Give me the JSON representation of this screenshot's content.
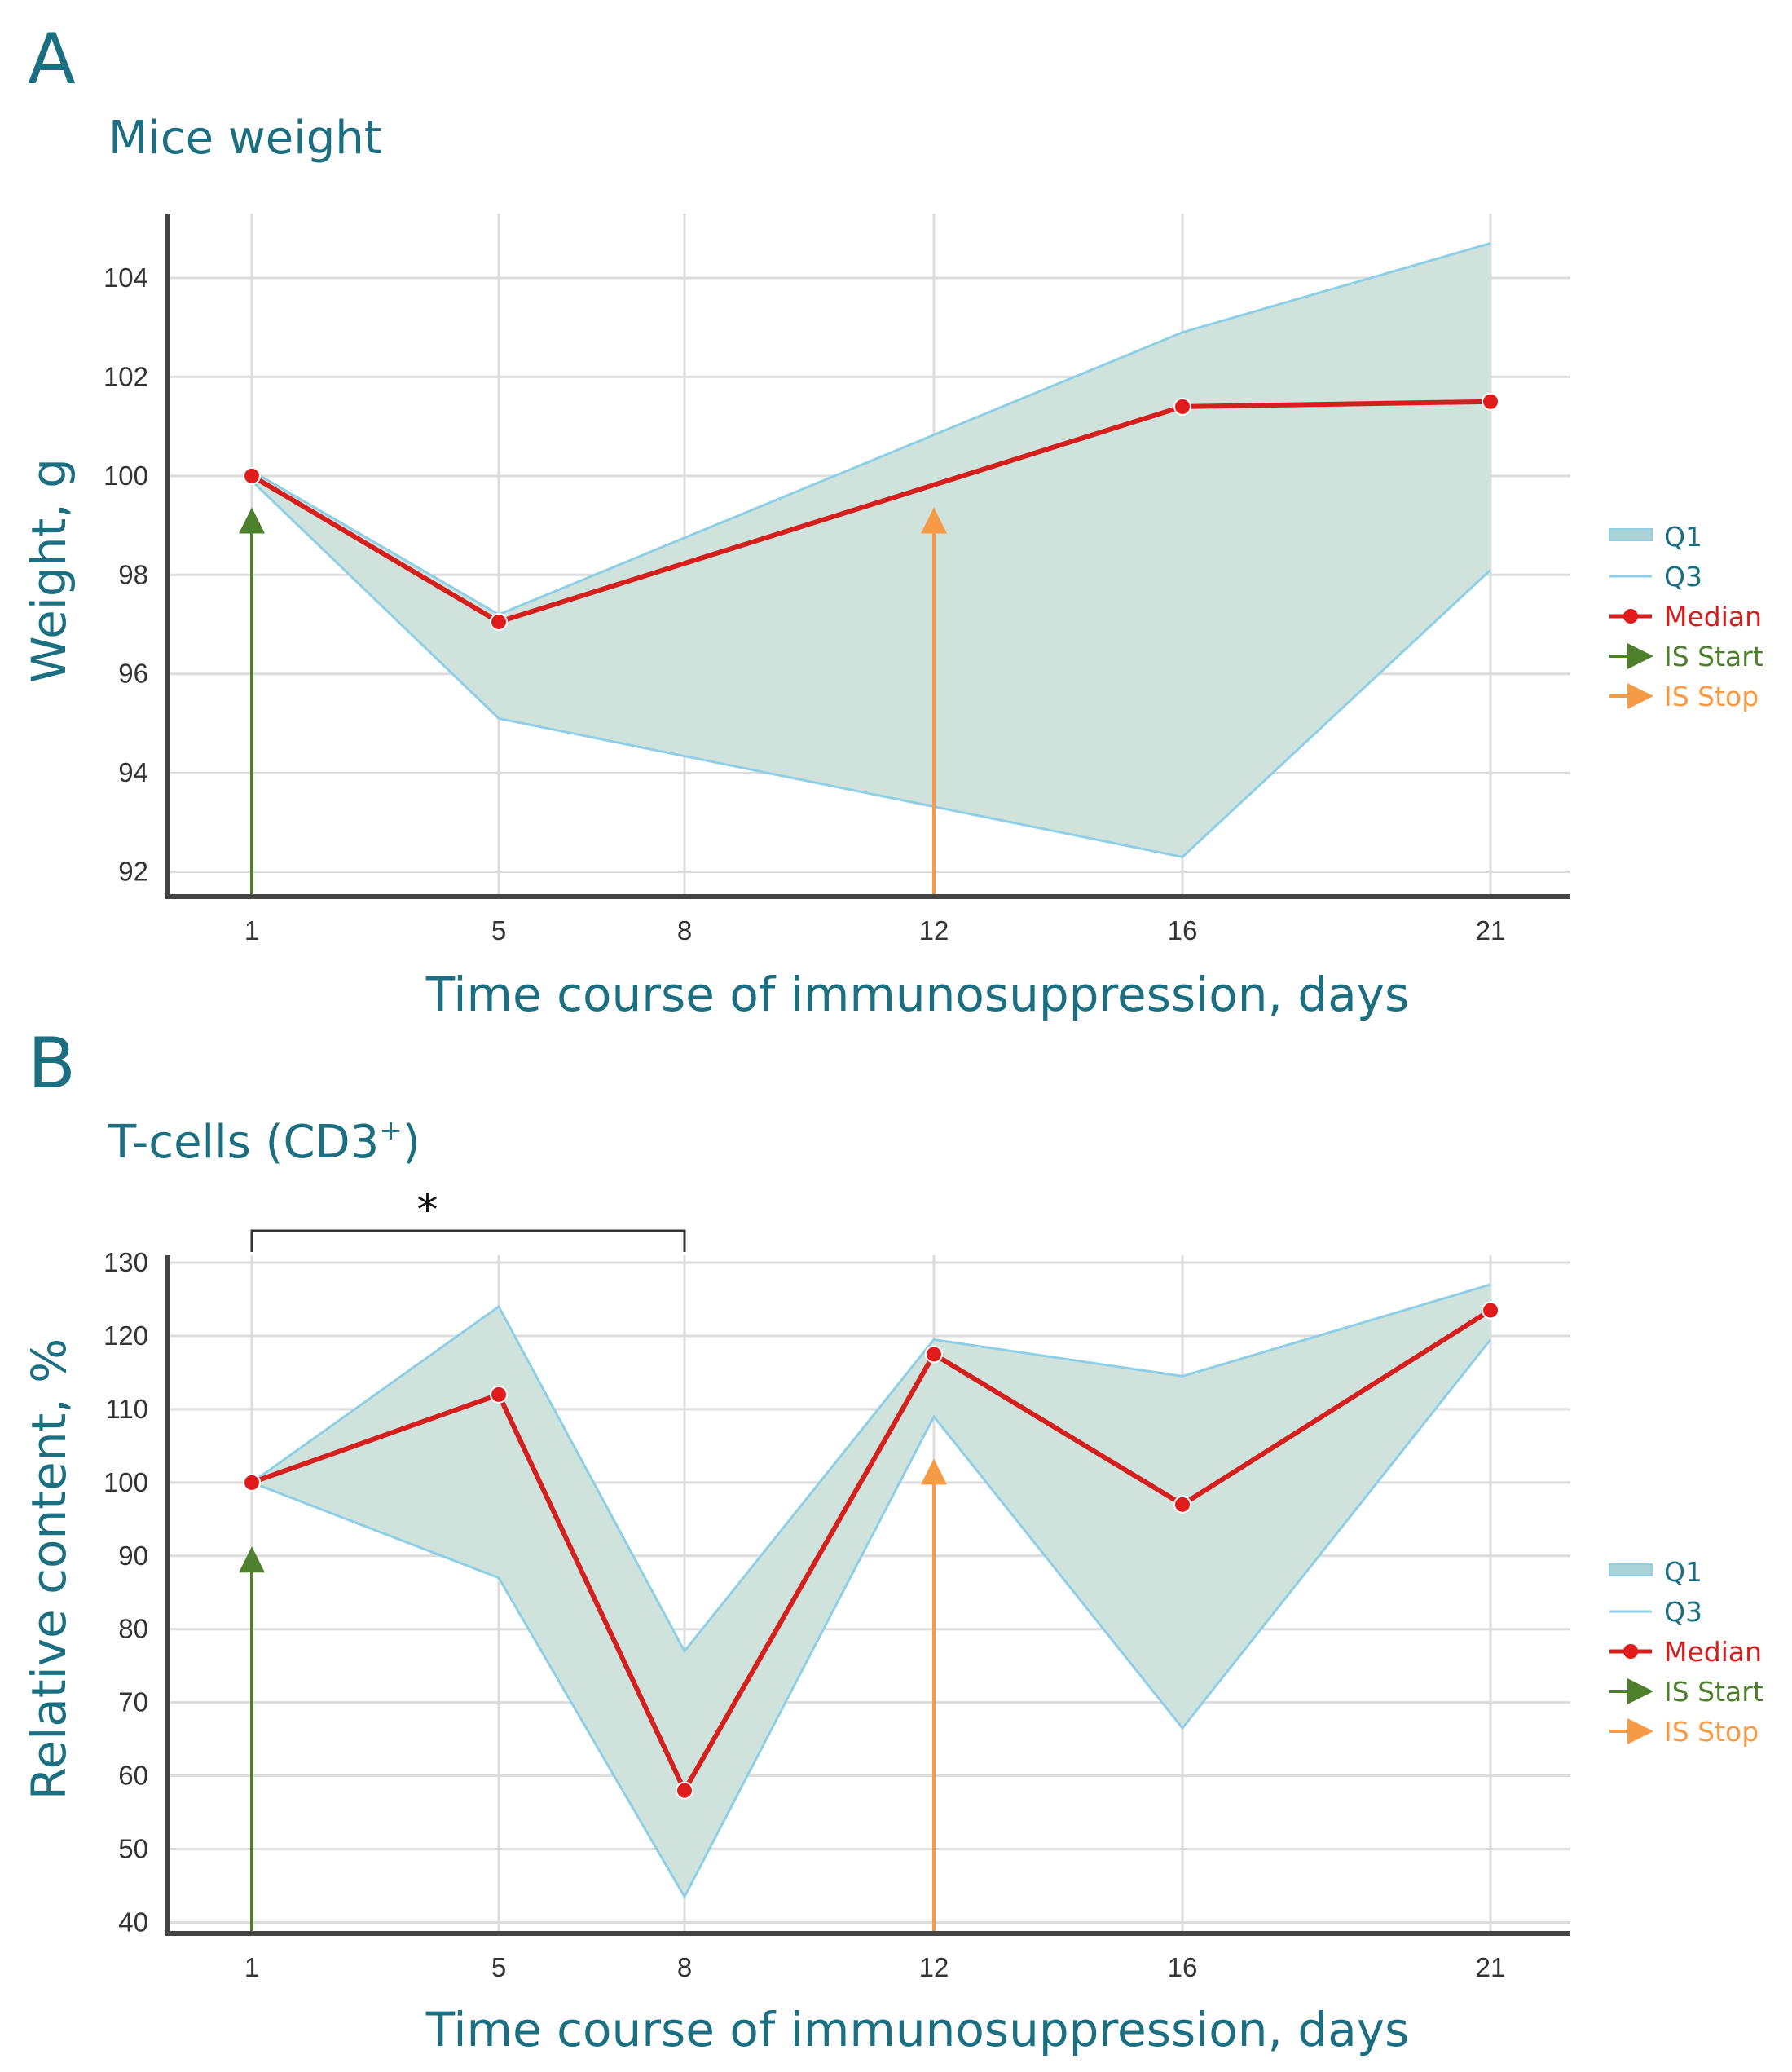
{
  "colors": {
    "band_fill": "#cfe2dc",
    "band_stroke": "#8fcfe6",
    "median": "#d51f1f",
    "median_marker": "#e01b1b",
    "is_start": "#4e7f2c",
    "is_stop": "#f79a45",
    "title_text": "#1b6f80"
  },
  "chart_data": [
    {
      "type": "area",
      "panel_letter": "A",
      "title": "Mice weight",
      "xlabel": "Time course of immunosuppression, days",
      "ylabel": "Weight, g",
      "categories": [
        "1",
        "5",
        "8",
        "12",
        "16",
        "21"
      ],
      "x": [
        1,
        5,
        8,
        12,
        16,
        21
      ],
      "y_ticks": [
        92,
        94,
        96,
        98,
        100,
        102,
        104
      ],
      "ylim": [
        91.5,
        105.3
      ],
      "series": [
        {
          "name": "Q1",
          "kind": "band-lower",
          "x": [
            1,
            5,
            16,
            21
          ],
          "values": [
            99.9,
            95.1,
            92.3,
            98.1
          ]
        },
        {
          "name": "Q3",
          "kind": "band-upper",
          "x": [
            1,
            5,
            16,
            21
          ],
          "values": [
            100.1,
            97.2,
            102.9,
            104.7
          ]
        },
        {
          "name": "Median",
          "kind": "line",
          "x": [
            1,
            5,
            16,
            21
          ],
          "values": [
            100.0,
            97.05,
            101.4,
            101.5
          ]
        }
      ],
      "arrows": [
        {
          "name": "IS Start",
          "x": 1,
          "to": 99.1
        },
        {
          "name": "IS Stop",
          "x": 12,
          "to": 99.1
        }
      ],
      "legend": [
        "Q1",
        "Q3",
        "Median",
        "IS Start",
        "IS Stop"
      ],
      "legend_position": "right",
      "grid": true
    },
    {
      "type": "area",
      "panel_letter": "B",
      "title": "T-cells (CD3",
      "title_sup": "+",
      "title_end": ")",
      "xlabel": "Time course of immunosuppression, days",
      "ylabel": "Relative content, %",
      "categories": [
        "1",
        "5",
        "8",
        "12",
        "16",
        "21"
      ],
      "x": [
        1,
        5,
        8,
        12,
        16,
        21
      ],
      "y_ticks": [
        40,
        50,
        60,
        70,
        80,
        90,
        100,
        110,
        120,
        130
      ],
      "ylim": [
        38.5,
        131
      ],
      "series": [
        {
          "name": "Q1",
          "kind": "band-lower",
          "x": [
            1,
            5,
            8,
            12,
            16,
            21
          ],
          "values": [
            100,
            87,
            43.5,
            109,
            66.5,
            119.5
          ]
        },
        {
          "name": "Q3",
          "kind": "band-upper",
          "x": [
            1,
            5,
            8,
            12,
            16,
            21
          ],
          "values": [
            100,
            124,
            77,
            119.5,
            114.5,
            127
          ]
        },
        {
          "name": "Median",
          "kind": "line",
          "x": [
            1,
            5,
            8,
            12,
            16,
            21
          ],
          "values": [
            100,
            112,
            58,
            117.5,
            97,
            123.5
          ]
        }
      ],
      "arrows": [
        {
          "name": "IS Start",
          "x": 1,
          "to": 89.5
        },
        {
          "name": "IS Stop",
          "x": 12,
          "to": 101.5
        }
      ],
      "annotations": [
        {
          "type": "significance-bracket",
          "from": 1,
          "to": 8,
          "text": "*"
        }
      ],
      "legend": [
        "Q1",
        "Q3",
        "Median",
        "IS Start",
        "IS Stop"
      ],
      "legend_position": "right",
      "grid": true
    }
  ]
}
